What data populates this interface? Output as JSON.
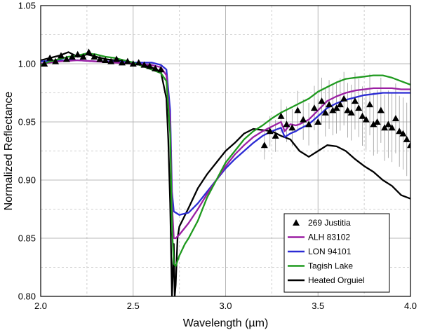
{
  "chart_data": {
    "type": "line",
    "xlabel": "Wavelength (µm)",
    "ylabel": "Normalized Reflectance",
    "xlim": [
      2.0,
      4.0
    ],
    "ylim": [
      0.8,
      1.05
    ],
    "x_ticks": [
      2.0,
      2.5,
      3.0,
      3.5,
      4.0
    ],
    "x_tick_labels": [
      "2.0",
      "2.5",
      "3.0",
      "3.5",
      "4.0"
    ],
    "y_ticks": [
      0.8,
      0.85,
      0.9,
      0.95,
      1.0,
      1.05
    ],
    "y_tick_labels": [
      "0.80",
      "0.85",
      "0.90",
      "0.95",
      "1.00",
      "1.05"
    ],
    "grid": true,
    "legend_position": "bottom-right",
    "series": [
      {
        "name": "269 Justitia",
        "kind": "scatter",
        "marker": "triangle",
        "color": "#000000",
        "x": [
          2.02,
          2.05,
          2.08,
          2.11,
          2.14,
          2.17,
          2.2,
          2.23,
          2.26,
          2.29,
          2.32,
          2.35,
          2.38,
          2.41,
          2.44,
          2.47,
          2.5,
          2.53,
          2.56,
          2.59,
          2.62,
          2.65
        ],
        "y": [
          1.0,
          1.005,
          1.002,
          1.007,
          1.004,
          1.006,
          1.008,
          1.006,
          1.01,
          1.006,
          1.004,
          1.003,
          1.002,
          1.004,
          1.001,
          1.002,
          1.0,
          1.001,
          0.999,
          0.998,
          0.996,
          0.995
        ],
        "x_b": [
          3.21,
          3.24,
          3.27,
          3.3,
          3.33,
          3.36,
          3.39,
          3.42,
          3.45,
          3.48,
          3.5,
          3.52,
          3.54,
          3.56,
          3.58,
          3.6,
          3.62,
          3.64,
          3.66,
          3.68,
          3.7,
          3.72,
          3.74,
          3.76,
          3.78,
          3.8,
          3.82,
          3.84,
          3.86,
          3.88,
          3.9,
          3.92,
          3.94,
          3.96,
          3.98,
          4.0
        ],
        "y_b": [
          0.93,
          0.942,
          0.938,
          0.955,
          0.948,
          0.945,
          0.96,
          0.952,
          0.948,
          0.962,
          0.95,
          0.968,
          0.958,
          0.965,
          0.96,
          0.962,
          0.965,
          0.97,
          0.96,
          0.958,
          0.968,
          0.962,
          0.955,
          0.952,
          0.965,
          0.948,
          0.95,
          0.96,
          0.945,
          0.948,
          0.945,
          0.953,
          0.942,
          0.94,
          0.935,
          0.93
        ]
      },
      {
        "name": "ALH 83102",
        "kind": "line",
        "color": "#9b1fa3",
        "x": [
          2.0,
          2.1,
          2.2,
          2.3,
          2.4,
          2.5,
          2.6,
          2.65,
          2.68,
          2.7,
          2.71,
          2.72,
          2.73,
          2.75,
          2.8,
          2.85,
          2.9,
          2.95,
          3.0,
          3.05,
          3.1,
          3.15,
          3.2,
          3.25,
          3.3,
          3.32,
          3.35,
          3.38,
          3.4,
          3.45,
          3.5,
          3.55,
          3.6,
          3.65,
          3.7,
          3.75,
          3.8,
          3.85,
          3.9,
          3.95,
          4.0
        ],
        "y": [
          1.0,
          1.002,
          1.003,
          1.002,
          1.001,
          1.0,
          0.999,
          0.997,
          0.99,
          0.95,
          0.88,
          0.85,
          0.85,
          0.853,
          0.863,
          0.875,
          0.888,
          0.9,
          0.912,
          0.922,
          0.93,
          0.937,
          0.942,
          0.946,
          0.95,
          0.942,
          0.948,
          0.947,
          0.948,
          0.952,
          0.96,
          0.968,
          0.972,
          0.975,
          0.977,
          0.978,
          0.979,
          0.979,
          0.979,
          0.978,
          0.978
        ]
      },
      {
        "name": "LON 94101",
        "kind": "line",
        "color": "#2b2bd4",
        "x": [
          2.0,
          2.1,
          2.2,
          2.3,
          2.4,
          2.5,
          2.6,
          2.65,
          2.68,
          2.7,
          2.71,
          2.72,
          2.73,
          2.75,
          2.8,
          2.85,
          2.9,
          2.95,
          3.0,
          3.05,
          3.1,
          3.15,
          3.2,
          3.25,
          3.3,
          3.32,
          3.35,
          3.38,
          3.4,
          3.45,
          3.5,
          3.55,
          3.6,
          3.65,
          3.7,
          3.75,
          3.8,
          3.85,
          3.9,
          3.95,
          4.0
        ],
        "y": [
          1.002,
          1.003,
          1.003,
          1.002,
          1.002,
          1.001,
          1.001,
          0.999,
          0.995,
          0.96,
          0.89,
          0.873,
          0.872,
          0.87,
          0.872,
          0.88,
          0.89,
          0.9,
          0.91,
          0.918,
          0.925,
          0.932,
          0.938,
          0.942,
          0.945,
          0.937,
          0.94,
          0.942,
          0.944,
          0.948,
          0.955,
          0.962,
          0.966,
          0.969,
          0.971,
          0.973,
          0.974,
          0.975,
          0.975,
          0.975,
          0.975
        ]
      },
      {
        "name": "Tagish Lake",
        "kind": "line",
        "color": "#1f9a1f",
        "x": [
          2.0,
          2.05,
          2.1,
          2.15,
          2.2,
          2.25,
          2.3,
          2.35,
          2.4,
          2.45,
          2.5,
          2.55,
          2.6,
          2.65,
          2.68,
          2.7,
          2.71,
          2.72,
          2.73,
          2.75,
          2.78,
          2.8,
          2.85,
          2.9,
          2.95,
          3.0,
          3.05,
          3.1,
          3.15,
          3.2,
          3.25,
          3.3,
          3.35,
          3.4,
          3.45,
          3.5,
          3.55,
          3.6,
          3.65,
          3.7,
          3.75,
          3.8,
          3.85,
          3.9,
          3.95,
          4.0
        ],
        "y": [
          0.999,
          1.002,
          1.004,
          1.006,
          1.007,
          1.009,
          1.008,
          1.006,
          1.005,
          1.003,
          1.001,
          0.998,
          0.995,
          0.992,
          0.985,
          0.94,
          0.86,
          0.828,
          0.826,
          0.835,
          0.845,
          0.85,
          0.865,
          0.885,
          0.9,
          0.915,
          0.925,
          0.935,
          0.942,
          0.947,
          0.953,
          0.958,
          0.962,
          0.966,
          0.97,
          0.976,
          0.98,
          0.984,
          0.987,
          0.988,
          0.989,
          0.99,
          0.99,
          0.988,
          0.985,
          0.982
        ]
      },
      {
        "name": "Heated Orguiel",
        "kind": "line",
        "color": "#000000",
        "x": [
          2.0,
          2.05,
          2.1,
          2.15,
          2.2,
          2.25,
          2.3,
          2.35,
          2.4,
          2.45,
          2.5,
          2.55,
          2.6,
          2.65,
          2.68,
          2.69,
          2.7,
          2.705,
          2.71,
          2.715,
          2.72,
          2.725,
          2.73,
          2.74,
          2.75,
          2.8,
          2.85,
          2.9,
          2.95,
          3.0,
          3.05,
          3.1,
          3.15,
          3.2,
          3.25,
          3.3,
          3.35,
          3.4,
          3.45,
          3.5,
          3.55,
          3.6,
          3.65,
          3.7,
          3.75,
          3.8,
          3.85,
          3.9,
          3.95,
          4.0
        ],
        "y": [
          1.003,
          1.005,
          1.007,
          1.01,
          1.006,
          1.008,
          1.006,
          1.004,
          1.003,
          1.002,
          1.0,
          0.999,
          0.997,
          0.993,
          0.97,
          0.935,
          0.88,
          0.84,
          0.8,
          0.82,
          0.845,
          0.8,
          0.81,
          0.85,
          0.86,
          0.876,
          0.893,
          0.905,
          0.915,
          0.925,
          0.932,
          0.94,
          0.944,
          0.943,
          0.942,
          0.938,
          0.935,
          0.925,
          0.92,
          0.925,
          0.93,
          0.929,
          0.925,
          0.918,
          0.912,
          0.907,
          0.9,
          0.895,
          0.887,
          0.884
        ]
      }
    ]
  }
}
